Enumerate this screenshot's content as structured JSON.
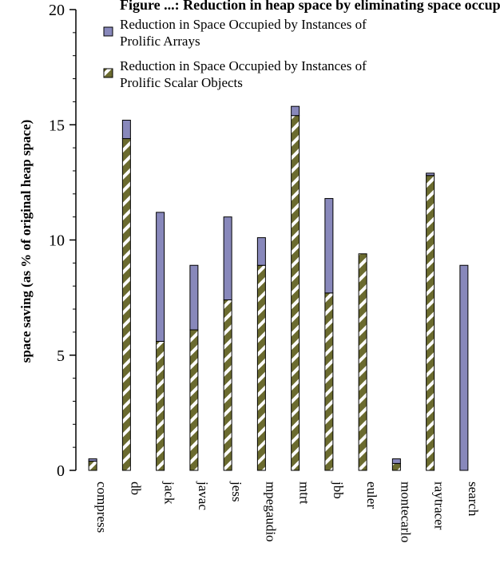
{
  "chart_data": {
    "type": "bar",
    "stacked": true,
    "title": "Figure ...: Reduction in heap space by eliminating space occupied by prolific objects",
    "ylabel": "space saving (as % of original heap space)",
    "xlabel": "",
    "ylim": [
      0,
      20
    ],
    "yticks": [
      0,
      5,
      10,
      15,
      20
    ],
    "grid": false,
    "legend_position": "top-left",
    "categories": [
      "compress",
      "db",
      "jack",
      "javac",
      "jess",
      "mpegaudio",
      "mtrt",
      "jbb",
      "euler",
      "montecarlo",
      "raytracer",
      "search"
    ],
    "series": [
      {
        "name": "Reduction in Space Occupied by Instances of Prolific Scalar Objects",
        "values": [
          0.4,
          14.4,
          5.6,
          6.1,
          7.4,
          8.9,
          15.4,
          7.7,
          9.4,
          0.3,
          12.8,
          0.0
        ],
        "color": "#6b6b2f",
        "pattern": "olive-white-diagonal-stripes"
      },
      {
        "name": "Reduction in Space Occupied by Instances of Prolific Arrays",
        "values": [
          0.1,
          0.8,
          5.6,
          2.8,
          3.6,
          1.2,
          0.4,
          4.1,
          0.0,
          0.2,
          0.1,
          8.9
        ],
        "color": "#8888bb",
        "pattern": "solid"
      }
    ],
    "legend": [
      "Reduction in Space Occupied by Instances of Prolific Arrays",
      "Reduction in Space Occupied by Instances of Prolific Scalar Objects"
    ]
  }
}
